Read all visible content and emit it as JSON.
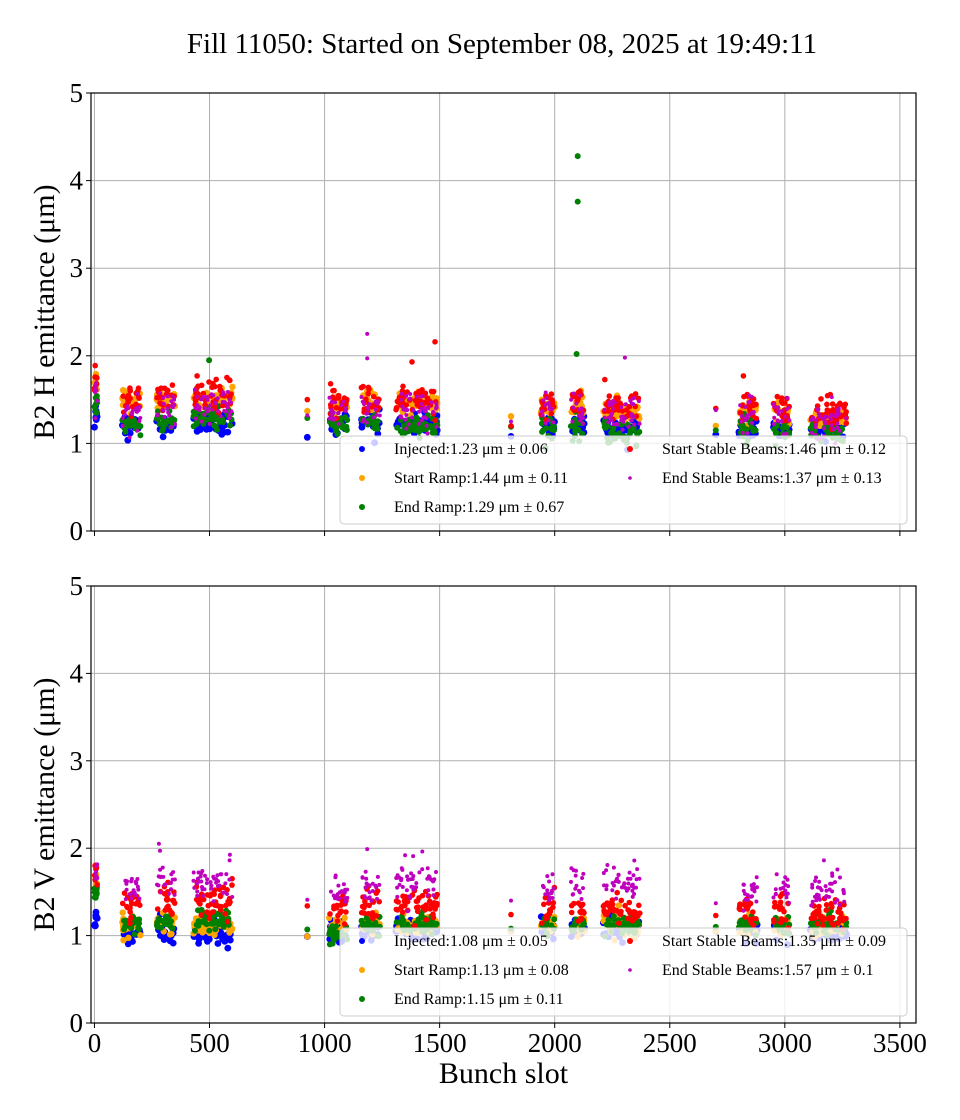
{
  "chart_data": [
    {
      "type": "scatter",
      "title": "Fill 11050: Started on September 08, 2025 at 19:49:11",
      "xlabel": "",
      "ylabel": "B2 H emittance (μm)",
      "xlim": [
        -15,
        3570
      ],
      "ylim": [
        0,
        5
      ],
      "xticks": [
        0,
        500,
        1000,
        1500,
        2000,
        2500,
        3000,
        3500
      ],
      "yticks": [
        0,
        1,
        2,
        3,
        4,
        5
      ],
      "xtick_labels_visible": false,
      "grid": true,
      "legend_placement": "lower-right",
      "series": [
        {
          "name": "Injected",
          "legend": "Injected:1.23 μm ± 0.06",
          "color": "#0000ff",
          "mean": 1.23,
          "std": 0.06
        },
        {
          "name": "Start Ramp",
          "legend": "Start Ramp:1.44 μm ± 0.11",
          "color": "#ffa500",
          "mean": 1.44,
          "std": 0.11
        },
        {
          "name": "End Ramp",
          "legend": "End Ramp:1.29 μm ± 0.67",
          "color": "#008000",
          "mean": 1.29,
          "std": 0.67
        },
        {
          "name": "Start Stable Beams",
          "legend": "Start Stable Beams:1.46 μm ± 0.12",
          "color": "#ff0000",
          "mean": 1.46,
          "std": 0.12
        },
        {
          "name": "End Stable Beams",
          "legend": "End Stable Beams:1.37 μm ± 0.13",
          "color": "#bf00bf",
          "mean": 1.37,
          "std": 0.13
        }
      ],
      "clusters": [
        {
          "x": [
            0,
            12
          ],
          "levels": [
            1.35,
            1.72,
            1.45,
            1.72,
            1.55
          ]
        },
        {
          "x": [
            120,
            200
          ],
          "levels": [
            1.22,
            1.5,
            1.22,
            1.5,
            1.38
          ]
        },
        {
          "x": [
            270,
            350
          ],
          "levels": [
            1.2,
            1.5,
            1.25,
            1.52,
            1.4
          ]
        },
        {
          "x": [
            430,
            600
          ],
          "levels": [
            1.22,
            1.52,
            1.3,
            1.55,
            1.45
          ]
        },
        {
          "x": [
            925,
            925
          ],
          "levels": [
            1.07,
            1.37,
            1.29,
            1.5,
            1.32
          ]
        },
        {
          "x": [
            1020,
            1100
          ],
          "levels": [
            1.24,
            1.45,
            1.22,
            1.48,
            1.38
          ]
        },
        {
          "x": [
            1160,
            1240
          ],
          "levels": [
            1.25,
            1.5,
            1.24,
            1.48,
            1.4
          ]
        },
        {
          "x": [
            1310,
            1490
          ],
          "levels": [
            1.22,
            1.45,
            1.2,
            1.5,
            1.38
          ]
        },
        {
          "x": [
            1810,
            1810
          ],
          "levels": [
            1.08,
            1.31,
            1.19,
            1.2,
            1.25
          ]
        },
        {
          "x": [
            1940,
            2000
          ],
          "levels": [
            1.2,
            1.4,
            1.18,
            1.42,
            1.38
          ]
        },
        {
          "x": [
            2070,
            2130
          ],
          "levels": [
            1.22,
            1.45,
            1.18,
            1.48,
            1.4
          ]
        },
        {
          "x": [
            2210,
            2370
          ],
          "levels": [
            1.18,
            1.38,
            1.12,
            1.42,
            1.35
          ]
        },
        {
          "x": [
            2700,
            2700
          ],
          "levels": [
            1.1,
            1.2,
            1.15,
            1.4,
            1.38
          ]
        },
        {
          "x": [
            2800,
            2880
          ],
          "levels": [
            1.18,
            1.35,
            1.15,
            1.42,
            1.32
          ]
        },
        {
          "x": [
            2950,
            3020
          ],
          "levels": [
            1.18,
            1.35,
            1.15,
            1.4,
            1.32
          ]
        },
        {
          "x": [
            3110,
            3270
          ],
          "levels": [
            1.16,
            1.3,
            1.12,
            1.35,
            1.28
          ]
        }
      ],
      "outliers": [
        {
          "series": 2,
          "x": 2100,
          "y": 4.28
        },
        {
          "series": 2,
          "x": 2100,
          "y": 3.76
        },
        {
          "series": 2,
          "x": 2095,
          "y": 2.02
        },
        {
          "series": 2,
          "x": 498,
          "y": 1.95
        },
        {
          "series": 3,
          "x": 1480,
          "y": 2.16
        },
        {
          "series": 4,
          "x": 1185,
          "y": 2.25
        },
        {
          "series": 4,
          "x": 1185,
          "y": 1.97
        },
        {
          "series": 3,
          "x": 1380,
          "y": 1.93
        },
        {
          "series": 3,
          "x": 2820,
          "y": 1.77
        },
        {
          "series": 4,
          "x": 2305,
          "y": 1.98
        }
      ]
    },
    {
      "type": "scatter",
      "xlabel": "Bunch slot",
      "ylabel": "B2 V emittance (μm)",
      "xlim": [
        -15,
        3570
      ],
      "ylim": [
        0,
        5
      ],
      "xticks": [
        0,
        500,
        1000,
        1500,
        2000,
        2500,
        3000,
        3500
      ],
      "xtick_labels": [
        "0",
        "500",
        "1000",
        "1500",
        "2000",
        "2500",
        "3000",
        "3500"
      ],
      "yticks": [
        0,
        1,
        2,
        3,
        4,
        5
      ],
      "grid": true,
      "legend_placement": "lower-right",
      "series": [
        {
          "name": "Injected",
          "legend": "Injected:1.08 μm ± 0.05",
          "color": "#0000ff",
          "mean": 1.08,
          "std": 0.05
        },
        {
          "name": "Start Ramp",
          "legend": "Start Ramp:1.13 μm ± 0.08",
          "color": "#ffa500",
          "mean": 1.13,
          "std": 0.08
        },
        {
          "name": "End Ramp",
          "legend": "End Ramp:1.15 μm ± 0.11",
          "color": "#008000",
          "mean": 1.15,
          "std": 0.11
        },
        {
          "name": "Start Stable Beams",
          "legend": "Start Stable Beams:1.35 μm ± 0.09",
          "color": "#ff0000",
          "mean": 1.35,
          "std": 0.09
        },
        {
          "name": "End Stable Beams",
          "legend": "End Stable Beams:1.57 μm ± 0.1",
          "color": "#bf00bf",
          "mean": 1.57,
          "std": 0.1
        }
      ],
      "clusters": [
        {
          "x": [
            0,
            12
          ],
          "levels": [
            1.18,
            1.65,
            1.5,
            1.72,
            1.7
          ]
        },
        {
          "x": [
            120,
            200
          ],
          "levels": [
            1.03,
            1.12,
            1.1,
            1.35,
            1.58
          ]
        },
        {
          "x": [
            270,
            350
          ],
          "levels": [
            1.05,
            1.15,
            1.15,
            1.4,
            1.62
          ]
        },
        {
          "x": [
            430,
            600
          ],
          "levels": [
            1.05,
            1.12,
            1.18,
            1.42,
            1.6
          ]
        },
        {
          "x": [
            925,
            925
          ],
          "levels": [
            0.99,
            0.99,
            1.07,
            1.34,
            1.41
          ]
        },
        {
          "x": [
            1020,
            1100
          ],
          "levels": [
            1.02,
            1.1,
            1.02,
            1.3,
            1.52
          ]
        },
        {
          "x": [
            1160,
            1240
          ],
          "levels": [
            1.05,
            1.12,
            1.1,
            1.35,
            1.58
          ]
        },
        {
          "x": [
            1310,
            1490
          ],
          "levels": [
            1.05,
            1.12,
            1.12,
            1.35,
            1.6
          ]
        },
        {
          "x": [
            1810,
            1810
          ],
          "levels": [
            1.05,
            1.05,
            1.08,
            1.24,
            1.4
          ]
        },
        {
          "x": [
            1940,
            2000
          ],
          "levels": [
            1.08,
            1.12,
            1.12,
            1.3,
            1.55
          ]
        },
        {
          "x": [
            2070,
            2130
          ],
          "levels": [
            1.08,
            1.12,
            1.12,
            1.3,
            1.55
          ]
        },
        {
          "x": [
            2210,
            2370
          ],
          "levels": [
            1.08,
            1.12,
            1.15,
            1.3,
            1.58
          ]
        },
        {
          "x": [
            2700,
            2700
          ],
          "levels": [
            1.05,
            1.05,
            1.1,
            1.23,
            1.37
          ]
        },
        {
          "x": [
            2800,
            2880
          ],
          "levels": [
            1.05,
            1.1,
            1.12,
            1.28,
            1.48
          ]
        },
        {
          "x": [
            2950,
            3020
          ],
          "levels": [
            1.05,
            1.1,
            1.12,
            1.28,
            1.5
          ]
        },
        {
          "x": [
            3110,
            3270
          ],
          "levels": [
            1.05,
            1.1,
            1.12,
            1.25,
            1.52
          ]
        }
      ],
      "outliers": [
        {
          "series": 4,
          "x": 280,
          "y": 2.05
        },
        {
          "series": 4,
          "x": 285,
          "y": 1.97
        },
        {
          "series": 4,
          "x": 1185,
          "y": 1.99
        },
        {
          "series": 4,
          "x": 1350,
          "y": 1.92
        },
        {
          "series": 4,
          "x": 3170,
          "y": 1.86
        }
      ]
    }
  ]
}
